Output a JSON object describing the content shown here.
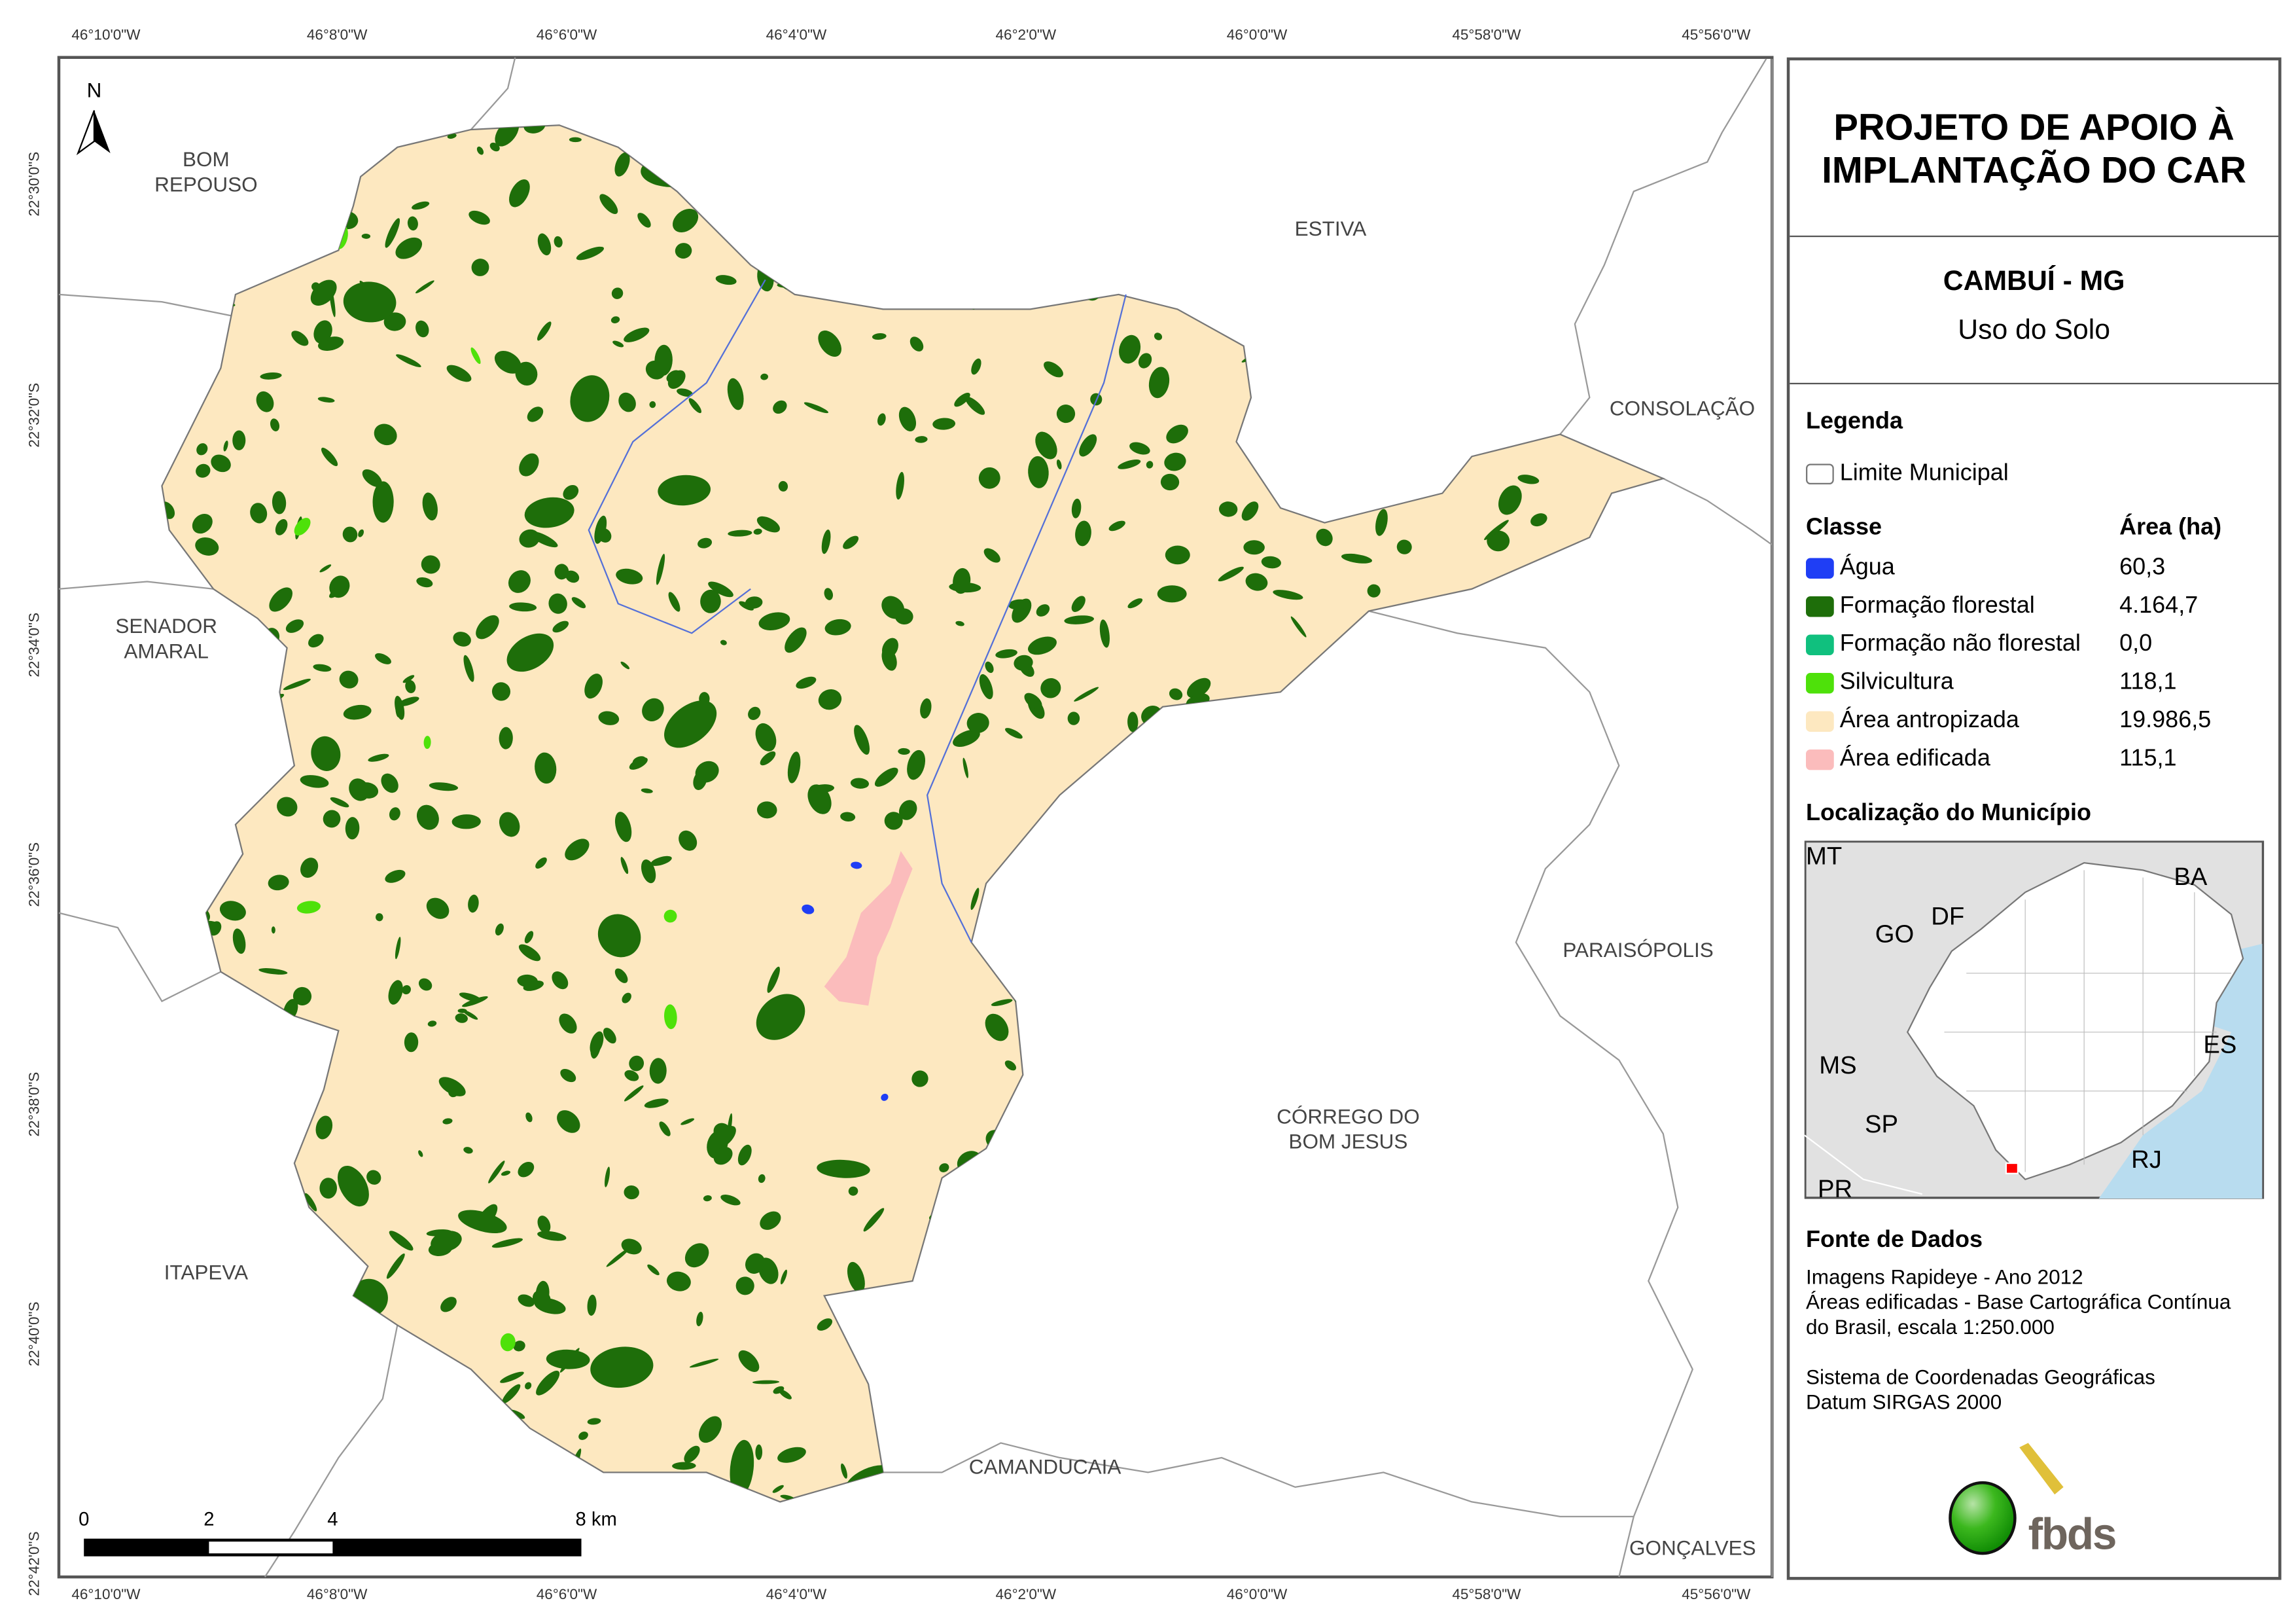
{
  "title": {
    "line1": "PROJETO DE APOIO À",
    "line2": "IMPLANTAÇÃO DO CAR"
  },
  "subtitle": {
    "municipality": "CAMBUÍ - MG",
    "theme": "Uso do Solo"
  },
  "legend": {
    "heading": "Legenda",
    "boundary_label": "Limite Municipal",
    "class_header": "Classe",
    "area_header": "Área (ha)",
    "classes": [
      {
        "label": "Água",
        "area": "60,3",
        "color": "#1f3ef5"
      },
      {
        "label": "Formação florestal",
        "area": "4.164,7",
        "color": "#1e6e0a"
      },
      {
        "label": "Formação não florestal",
        "area": "0,0",
        "color": "#10c07e"
      },
      {
        "label": "Silvicultura",
        "area": "118,1",
        "color": "#4ee10a"
      },
      {
        "label": "Área antropizada",
        "area": "19.986,5",
        "color": "#fde8c0"
      },
      {
        "label": "Área edificada",
        "area": "115,1",
        "color": "#fbbcbc"
      }
    ]
  },
  "location": {
    "heading": "Localização do Município",
    "labels": [
      "MT",
      "BA",
      "GO",
      "DF",
      "MS",
      "ES",
      "SP",
      "RJ",
      "PR"
    ],
    "marker_color": "#ff0000"
  },
  "sources": {
    "heading": "Fonte de Dados",
    "lines": [
      "Imagens Rapideye - Ano 2012",
      "Áreas edificadas - Base Cartográfica Contínua",
      "do Brasil, escala 1:250.000",
      "",
      "Sistema de Coordenadas Geográficas",
      "Datum SIRGAS 2000"
    ]
  },
  "logo": {
    "text": "fbds"
  },
  "map": {
    "north_label": "N",
    "lon_labels": [
      "46°10'0\"W",
      "46°8'0\"W",
      "46°6'0\"W",
      "46°4'0\"W",
      "46°2'0\"W",
      "46°0'0\"W",
      "45°58'0\"W",
      "45°56'0\"W"
    ],
    "lat_labels": [
      "22°30'0\"S",
      "22°32'0\"S",
      "22°34'0\"S",
      "22°36'0\"S",
      "22°38'0\"S",
      "22°40'0\"S",
      "22°42'0\"S"
    ],
    "neighbors": [
      {
        "name": "BOM\nREPOUSO"
      },
      {
        "name": "ESTIVA"
      },
      {
        "name": "CONSOLAÇÃO"
      },
      {
        "name": "SENADOR\nAMARAL"
      },
      {
        "name": "PARAISÓPOLIS"
      },
      {
        "name": "CÓRREGO DO\nBOM JESUS"
      },
      {
        "name": "ITAPEVA"
      },
      {
        "name": "CAMANDUCAIA"
      },
      {
        "name": "GONÇALVES"
      }
    ],
    "scale": {
      "ticks": [
        "0",
        "2",
        "4",
        "8 km"
      ]
    }
  }
}
